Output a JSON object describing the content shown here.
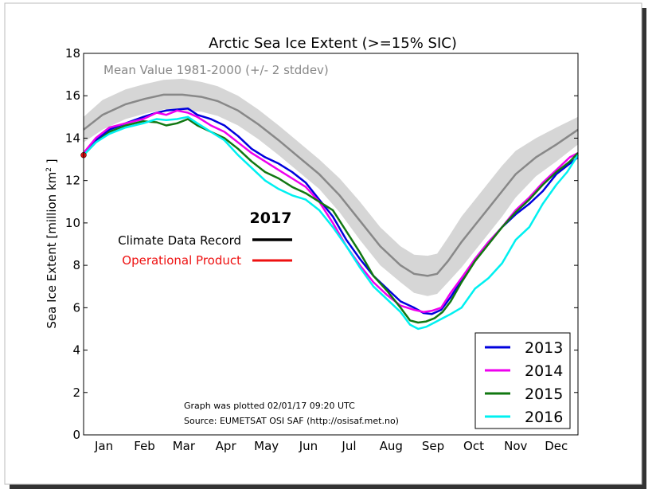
{
  "chart_data": {
    "type": "line",
    "title": "Arctic Sea Ice Extent (>=15% SIC)",
    "ylabel_main": "Sea Ice Extent [million km",
    "ylabel_sup": "2",
    "ylabel_end": " ]",
    "ylim": [
      0,
      18
    ],
    "yticks": [
      0,
      2,
      4,
      6,
      8,
      10,
      12,
      14,
      16,
      18
    ],
    "xlim": [
      1,
      366
    ],
    "months": [
      "Jan",
      "Feb",
      "Mar",
      "Apr",
      "May",
      "Jun",
      "Jul",
      "Aug",
      "Sep",
      "Oct",
      "Nov",
      "Dec"
    ],
    "month_centers": [
      16,
      46,
      75,
      106,
      136,
      167,
      197,
      228,
      259,
      289,
      320,
      350
    ],
    "grid": false,
    "mean_label": "Mean Value 1981-2000 (+/- 2 stddev)",
    "mean_color": "#888888",
    "band_color": "#d6d6d6",
    "mean": {
      "x": [
        1,
        15,
        32,
        46,
        60,
        74,
        88,
        100,
        115,
        130,
        145,
        160,
        175,
        190,
        205,
        220,
        235,
        245,
        255,
        262,
        270,
        280,
        290,
        300,
        310,
        320,
        335,
        350,
        366
      ],
      "y": [
        14.4,
        15.1,
        15.6,
        15.85,
        16.05,
        16.05,
        15.95,
        15.75,
        15.3,
        14.65,
        13.9,
        13.1,
        12.3,
        11.3,
        10.1,
        8.9,
        8.0,
        7.6,
        7.5,
        7.6,
        8.2,
        9.1,
        9.9,
        10.7,
        11.5,
        12.3,
        13.1,
        13.7,
        14.4
      ]
    },
    "band": {
      "x": [
        1,
        15,
        32,
        46,
        60,
        74,
        88,
        100,
        115,
        130,
        145,
        160,
        175,
        190,
        205,
        220,
        235,
        245,
        255,
        262,
        270,
        280,
        290,
        300,
        310,
        320,
        335,
        350,
        366
      ],
      "upper": [
        15.0,
        15.8,
        16.3,
        16.55,
        16.75,
        16.8,
        16.65,
        16.45,
        16.0,
        15.35,
        14.6,
        13.8,
        13.0,
        12.1,
        11.0,
        9.8,
        8.9,
        8.5,
        8.45,
        8.55,
        9.3,
        10.3,
        11.1,
        11.9,
        12.7,
        13.4,
        14.0,
        14.5,
        15.0
      ],
      "lower": [
        13.8,
        14.4,
        14.9,
        15.15,
        15.35,
        15.3,
        15.25,
        15.05,
        14.6,
        13.95,
        13.2,
        12.4,
        11.6,
        10.5,
        9.2,
        8.0,
        7.2,
        6.7,
        6.55,
        6.65,
        7.2,
        7.9,
        8.7,
        9.5,
        10.3,
        11.2,
        12.2,
        12.9,
        13.7
      ]
    },
    "series": [
      {
        "name": "2013",
        "color": "#0000dd",
        "x": [
          1,
          10,
          20,
          32,
          45,
          55,
          62,
          70,
          78,
          85,
          95,
          105,
          115,
          125,
          135,
          145,
          155,
          165,
          175,
          185,
          195,
          205,
          215,
          225,
          235,
          245,
          252,
          258,
          265,
          272,
          280,
          290,
          300,
          310,
          320,
          330,
          340,
          350,
          360,
          366
        ],
        "y": [
          13.2,
          13.9,
          14.4,
          14.7,
          15.0,
          15.2,
          15.3,
          15.35,
          15.4,
          15.1,
          14.9,
          14.6,
          14.1,
          13.5,
          13.1,
          12.8,
          12.4,
          11.9,
          11.1,
          10.3,
          9.2,
          8.3,
          7.5,
          6.9,
          6.3,
          6.0,
          5.75,
          5.7,
          5.9,
          6.5,
          7.3,
          8.3,
          9.1,
          9.8,
          10.4,
          10.9,
          11.5,
          12.3,
          12.8,
          13.1
        ]
      },
      {
        "name": "2014",
        "color": "#ee00ee",
        "x": [
          1,
          10,
          20,
          32,
          45,
          55,
          62,
          70,
          78,
          85,
          95,
          105,
          115,
          125,
          135,
          145,
          155,
          165,
          175,
          185,
          195,
          205,
          215,
          225,
          235,
          245,
          252,
          258,
          265,
          272,
          280,
          290,
          300,
          310,
          320,
          330,
          340,
          350,
          360,
          366
        ],
        "y": [
          13.3,
          14.0,
          14.5,
          14.7,
          14.9,
          15.2,
          15.1,
          15.3,
          15.2,
          15.0,
          14.6,
          14.3,
          13.8,
          13.3,
          12.9,
          12.5,
          12.1,
          11.7,
          11.0,
          10.0,
          8.9,
          8.0,
          7.2,
          6.6,
          6.1,
          5.9,
          5.8,
          5.85,
          6.0,
          6.7,
          7.4,
          8.3,
          9.1,
          9.8,
          10.6,
          11.2,
          11.9,
          12.5,
          13.1,
          13.3
        ]
      },
      {
        "name": "2015",
        "color": "#117711",
        "x": [
          1,
          10,
          20,
          32,
          45,
          55,
          62,
          70,
          78,
          85,
          95,
          105,
          115,
          125,
          135,
          145,
          155,
          165,
          175,
          185,
          195,
          205,
          215,
          225,
          235,
          242,
          248,
          254,
          260,
          266,
          272,
          280,
          290,
          300,
          310,
          320,
          330,
          340,
          350,
          360,
          366
        ],
        "y": [
          13.2,
          13.8,
          14.3,
          14.6,
          14.8,
          14.75,
          14.6,
          14.7,
          14.9,
          14.6,
          14.3,
          14.0,
          13.5,
          12.9,
          12.4,
          12.1,
          11.7,
          11.4,
          11.0,
          10.6,
          9.6,
          8.6,
          7.5,
          6.8,
          6.0,
          5.4,
          5.3,
          5.35,
          5.5,
          5.8,
          6.3,
          7.2,
          8.2,
          9.0,
          9.8,
          10.5,
          11.1,
          11.8,
          12.4,
          12.9,
          13.3
        ]
      },
      {
        "name": "2016",
        "color": "#00f0f0",
        "x": [
          1,
          10,
          20,
          32,
          45,
          55,
          62,
          70,
          78,
          85,
          95,
          105,
          115,
          125,
          135,
          145,
          155,
          165,
          175,
          185,
          195,
          205,
          215,
          225,
          235,
          242,
          248,
          254,
          260,
          266,
          272,
          280,
          290,
          300,
          310,
          320,
          330,
          340,
          350,
          358,
          366
        ],
        "y": [
          13.2,
          13.8,
          14.2,
          14.5,
          14.7,
          14.9,
          14.85,
          14.9,
          15.0,
          14.7,
          14.3,
          13.9,
          13.2,
          12.6,
          12.0,
          11.6,
          11.3,
          11.1,
          10.6,
          9.8,
          8.9,
          7.9,
          7.0,
          6.4,
          5.8,
          5.2,
          5.0,
          5.1,
          5.3,
          5.5,
          5.7,
          6.0,
          6.9,
          7.4,
          8.1,
          9.2,
          9.8,
          10.9,
          11.8,
          12.4,
          13.2
        ]
      }
    ],
    "marker": {
      "x": 1,
      "y": 13.2,
      "color": "#dd1111"
    },
    "legend_placement": "lower-right",
    "annotation": {
      "year": "2017",
      "cdr_label": "Climate Data Record",
      "cdr_color": "#000000",
      "op_label": "Operational Product",
      "op_color": "#ee1111"
    },
    "footnote_1": "Graph was plotted 02/01/17 09:20 UTC",
    "footnote_2": "Source: EUMETSAT OSI SAF (http://osisaf.met.no)"
  }
}
